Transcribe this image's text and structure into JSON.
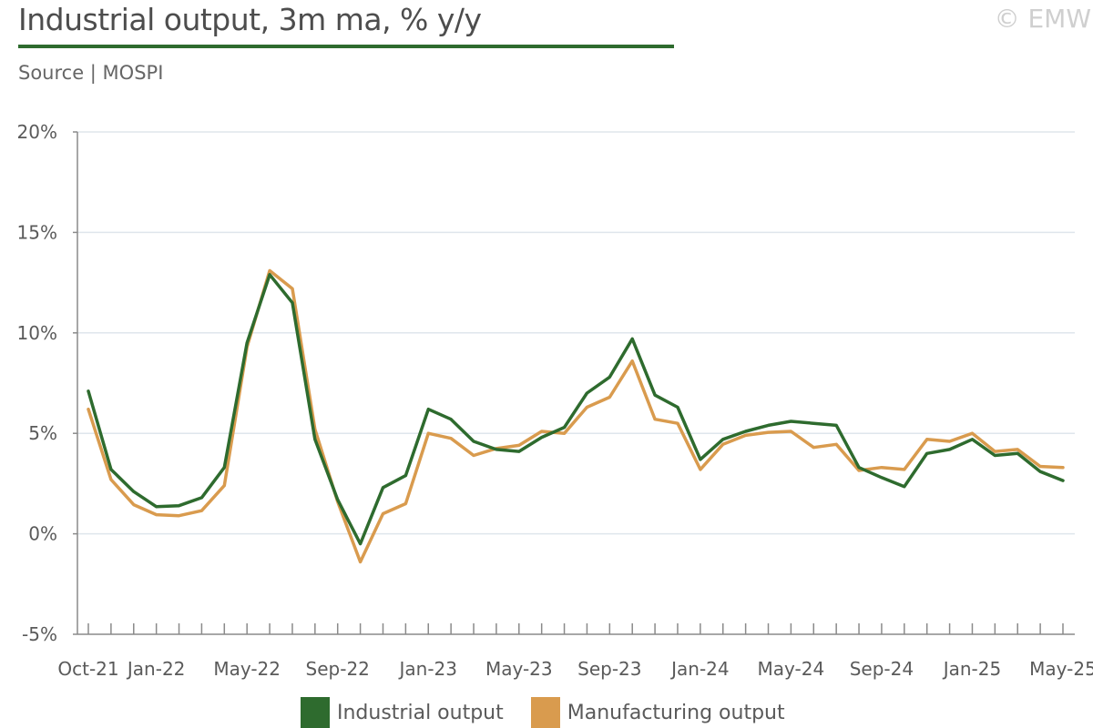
{
  "header": {
    "title": "Industrial output, 3m ma, % y/y",
    "source": "Source | MOSPI",
    "copyright": "© EMW"
  },
  "colors": {
    "industrial": "#2e6b2e",
    "manufacturing": "#d99b4e",
    "grid": "#dfe6ec",
    "axis": "#8a8a8a",
    "title_rule": "#2e6b2e"
  },
  "chart_data": {
    "type": "line",
    "title": "Industrial output, 3m ma, % y/y",
    "xlabel": "",
    "ylabel": "",
    "ylim": [
      -5,
      20
    ],
    "yticks": [
      -5,
      0,
      5,
      10,
      15,
      20
    ],
    "ytick_labels": [
      "-5%",
      "0%",
      "5%",
      "10%",
      "15%",
      "20%"
    ],
    "grid": true,
    "legend_position": "bottom",
    "x": [
      "Oct-21",
      "Nov-21",
      "Dec-21",
      "Jan-22",
      "Feb-22",
      "Mar-22",
      "Apr-22",
      "May-22",
      "Jun-22",
      "Jul-22",
      "Aug-22",
      "Sep-22",
      "Oct-22",
      "Nov-22",
      "Dec-22",
      "Jan-23",
      "Feb-23",
      "Mar-23",
      "Apr-23",
      "May-23",
      "Jun-23",
      "Jul-23",
      "Aug-23",
      "Sep-23",
      "Oct-23",
      "Nov-23",
      "Dec-23",
      "Jan-24",
      "Feb-24",
      "Mar-24",
      "Apr-24",
      "May-24",
      "Jun-24",
      "Jul-24",
      "Aug-24",
      "Sep-24",
      "Oct-24",
      "Nov-24",
      "Dec-24",
      "Jan-25",
      "Feb-25",
      "Mar-25",
      "Apr-25",
      "May-25"
    ],
    "xtick_labels": [
      {
        "index": 0,
        "label": "Oct-21"
      },
      {
        "index": 3,
        "label": "Jan-22"
      },
      {
        "index": 7,
        "label": "May-22"
      },
      {
        "index": 11,
        "label": "Sep-22"
      },
      {
        "index": 15,
        "label": "Jan-23"
      },
      {
        "index": 19,
        "label": "May-23"
      },
      {
        "index": 23,
        "label": "Sep-23"
      },
      {
        "index": 27,
        "label": "Jan-24"
      },
      {
        "index": 31,
        "label": "May-24"
      },
      {
        "index": 35,
        "label": "Sep-24"
      },
      {
        "index": 39,
        "label": "Jan-25"
      },
      {
        "index": 43,
        "label": "May-25"
      }
    ],
    "series": [
      {
        "name": "Industrial output",
        "color": "#2e6b2e",
        "values": [
          7.1,
          3.2,
          2.1,
          1.35,
          1.4,
          1.8,
          3.3,
          9.5,
          12.9,
          11.5,
          4.7,
          1.7,
          -0.5,
          2.3,
          2.9,
          6.2,
          5.7,
          4.6,
          4.2,
          4.1,
          4.8,
          5.3,
          7.0,
          7.8,
          9.7,
          6.9,
          6.3,
          3.7,
          4.7,
          5.1,
          5.4,
          5.6,
          5.5,
          5.4,
          3.3,
          2.8,
          2.35,
          4.0,
          4.2,
          4.7,
          3.9,
          4.0,
          3.1,
          2.65
        ]
      },
      {
        "name": "Manufacturing output",
        "color": "#d99b4e",
        "values": [
          6.2,
          2.7,
          1.45,
          0.95,
          0.9,
          1.15,
          2.4,
          9.3,
          13.1,
          12.2,
          5.2,
          1.6,
          -1.4,
          1.0,
          1.5,
          5.0,
          4.75,
          3.9,
          4.25,
          4.4,
          5.1,
          5.0,
          6.3,
          6.8,
          8.6,
          5.7,
          5.5,
          3.2,
          4.45,
          4.9,
          5.05,
          5.1,
          4.3,
          4.45,
          3.15,
          3.3,
          3.2,
          4.7,
          4.6,
          5.0,
          4.1,
          4.2,
          3.35,
          3.3
        ]
      }
    ]
  },
  "legend": {
    "items": [
      {
        "label": "Industrial output",
        "color": "#2e6b2e"
      },
      {
        "label": "Manufacturing output",
        "color": "#d99b4e"
      }
    ]
  }
}
